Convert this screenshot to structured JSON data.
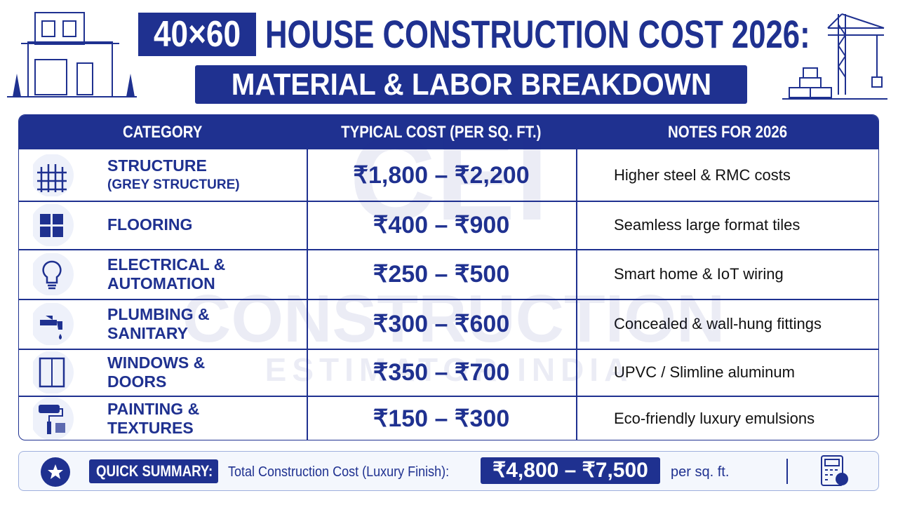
{
  "header": {
    "badge": "40×60",
    "title": "HOUSE CONSTRUCTION COST 2026:",
    "subtitle": "MATERIAL & LABOR BREAKDOWN"
  },
  "watermark": {
    "logo": "CEI",
    "name": "CONSTRUCTION",
    "tagline": "ESTIMATOR INDIA"
  },
  "table": {
    "columns": [
      "CATEGORY",
      "TYPICAL COST (PER SQ. FT.)",
      "NOTES FOR 2026"
    ],
    "rows": [
      {
        "category": [
          "STRUCTURE"
        ],
        "detail": "(GREY STRUCTURE)",
        "cost": "₹1,800 – ₹2,200",
        "note": "Higher steel & RMC costs"
      },
      {
        "category": [
          "FLOORING"
        ],
        "cost": "₹400 – ₹900",
        "note": "Seamless large format tiles"
      },
      {
        "category": [
          "ELECTRICAL &",
          "AUTOMATION"
        ],
        "cost": "₹250 – ₹500",
        "note": "Smart home & IoT wiring"
      },
      {
        "category": [
          "PLUMBING &",
          "SANITARY"
        ],
        "cost": "₹300 – ₹600",
        "note": "Concealed & wall-hung fittings"
      },
      {
        "category": [
          "WINDOWS &",
          "DOORS"
        ],
        "cost": "₹350 – ₹700",
        "note": "UPVC / Slimline aluminum"
      },
      {
        "category": [
          "PAINTING &",
          "TEXTURES"
        ],
        "cost": "₹150 – ₹300",
        "note": "Eco-friendly luxury emulsions"
      }
    ]
  },
  "summary": {
    "label": "QUICK SUMMARY:",
    "text": "Total Construction Cost (Luxury Finish):",
    "value": "₹4,800 – ₹7,500",
    "unit": "per sq. ft."
  }
}
